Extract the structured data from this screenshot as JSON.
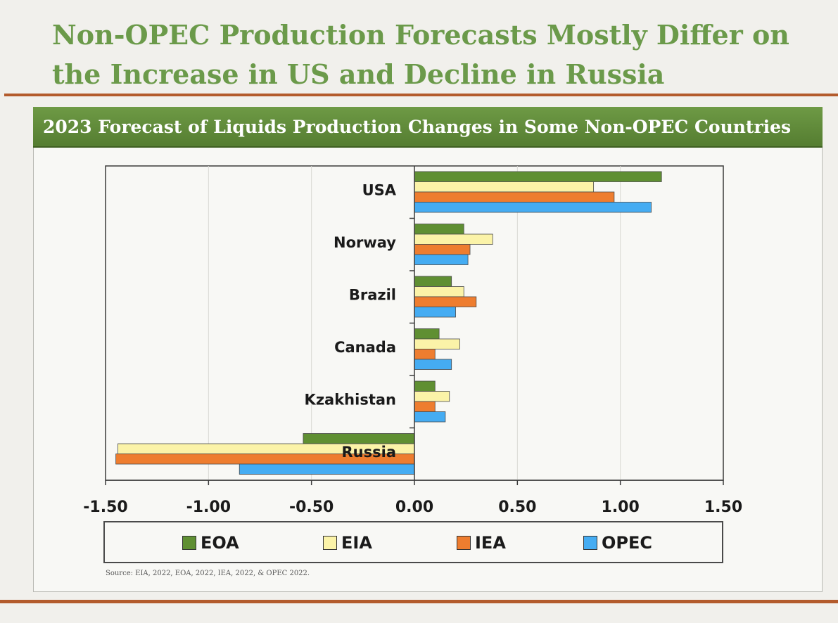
{
  "slide": {
    "title": "Non-OPEC Production Forecasts Mostly Differ on the Increase in US and Decline in Russia"
  },
  "chart_data": {
    "type": "bar",
    "orientation": "horizontal",
    "title": "2023 Forecast of Liquids Production Changes in Some Non-OPEC Countries",
    "categories": [
      "USA",
      "Norway",
      "Brazil",
      "Canada",
      "Kzakhistan",
      "Russia"
    ],
    "series": [
      {
        "name": "EOA",
        "color": "#5f8f32",
        "values": [
          1.2,
          0.24,
          0.18,
          0.12,
          0.1,
          -0.54
        ]
      },
      {
        "name": "EIA",
        "color": "#fbf3a8",
        "values": [
          0.87,
          0.38,
          0.24,
          0.22,
          0.17,
          -1.44
        ]
      },
      {
        "name": "IEA",
        "color": "#ee7d2f",
        "values": [
          0.97,
          0.27,
          0.3,
          0.1,
          0.1,
          -1.45
        ]
      },
      {
        "name": "OPEC",
        "color": "#45acf2",
        "values": [
          1.15,
          0.26,
          0.2,
          0.18,
          0.15,
          -0.85
        ]
      }
    ],
    "xlim": [
      -1.5,
      1.5
    ],
    "xticks": [
      "-1.50",
      "-1.00",
      "-0.50",
      "0.00",
      "0.50",
      "1.00",
      "1.50"
    ],
    "grid": "vertical",
    "legend": "bottom",
    "source": "Source: EIA, 2022, EOA, 2022, IEA, 2022, & OPEC 2022."
  }
}
